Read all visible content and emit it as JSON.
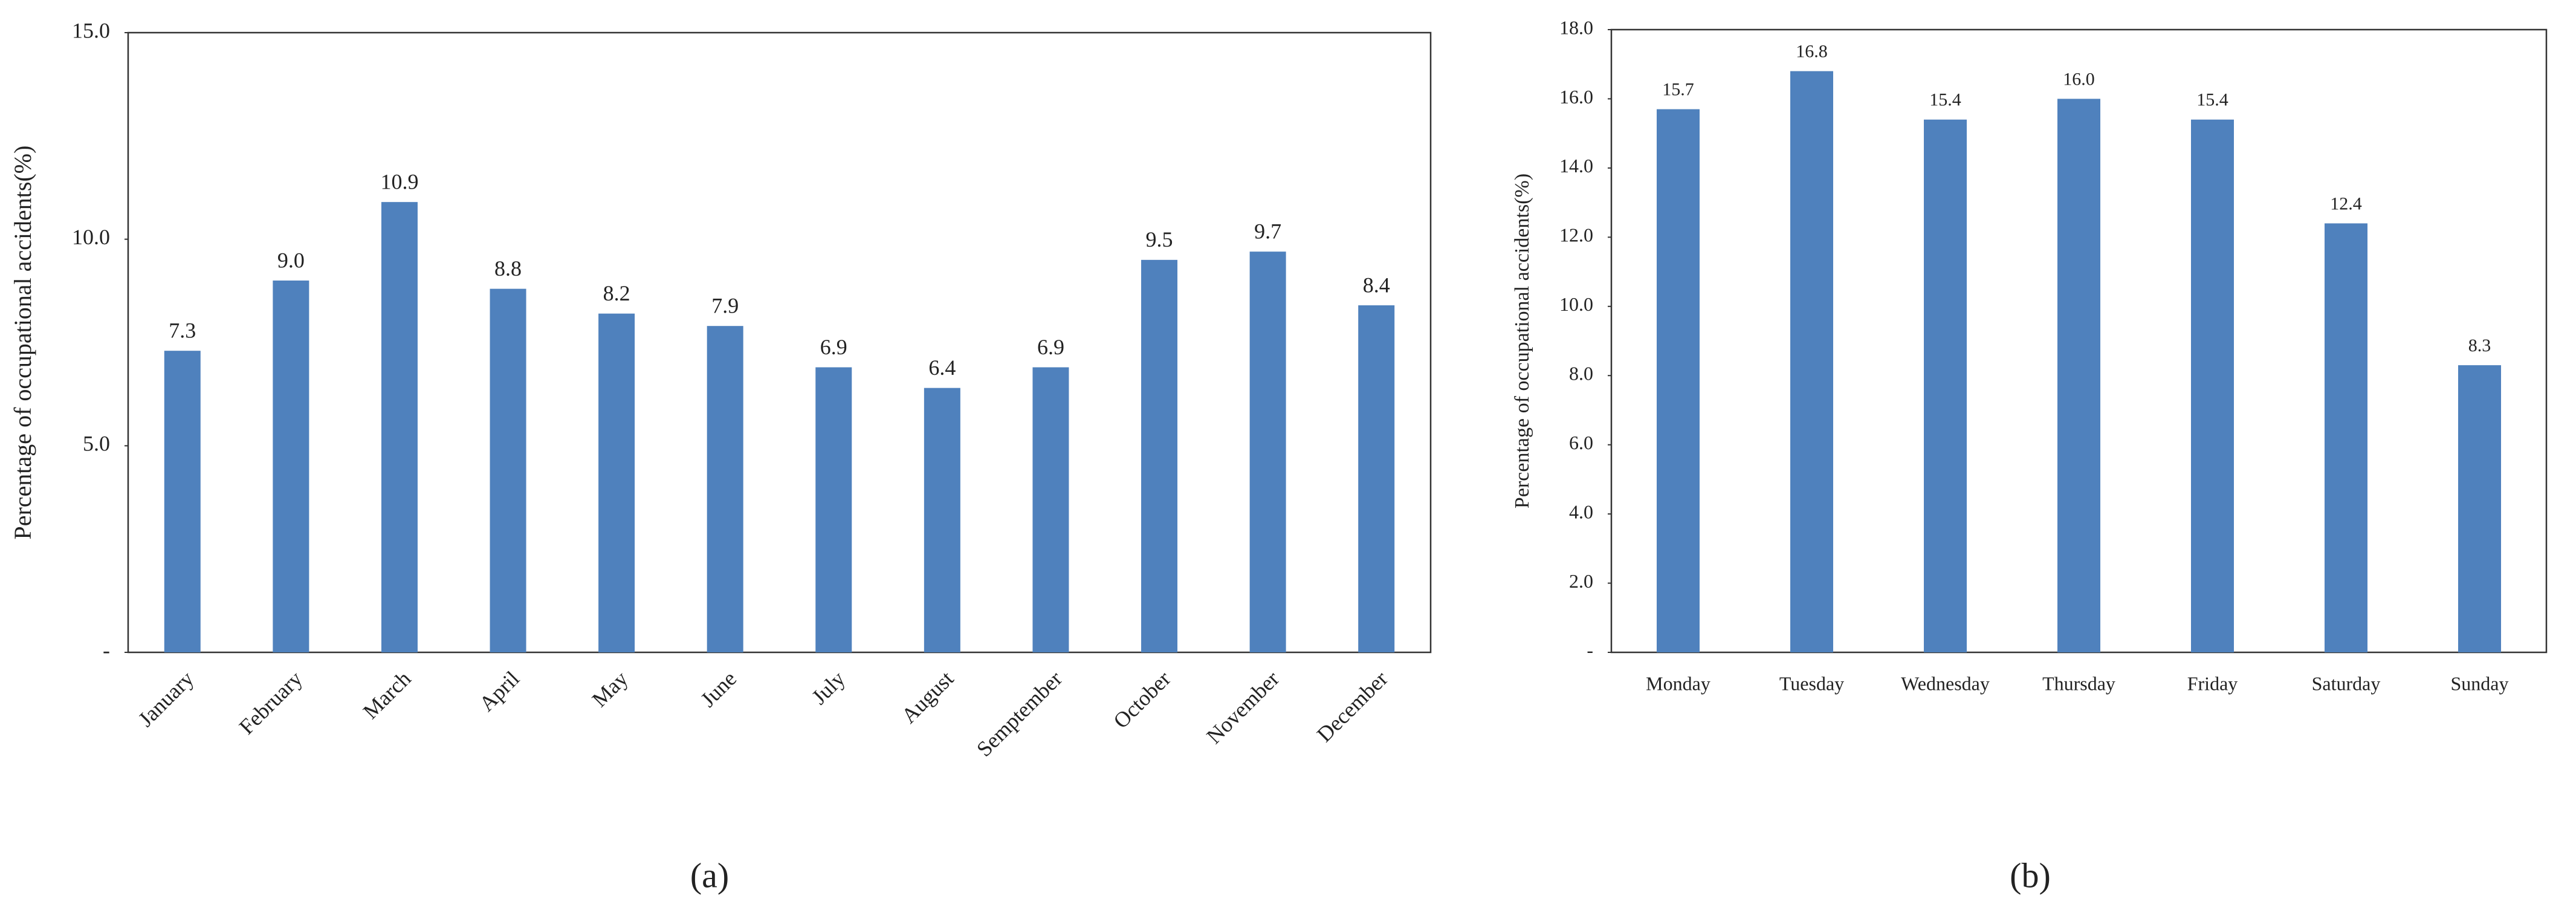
{
  "chart_data": [
    {
      "type": "bar",
      "caption": "(a)",
      "y_label": "Percentage of occupational accidents(%)",
      "categories": [
        "January",
        "February",
        "March",
        "April",
        "May",
        "June",
        "July",
        "August",
        "Semptember",
        "October",
        "November",
        "December"
      ],
      "values": [
        7.3,
        9.0,
        10.9,
        8.8,
        8.2,
        7.9,
        6.9,
        6.4,
        6.9,
        9.5,
        9.7,
        8.4
      ],
      "value_labels": [
        "7.3",
        "9.0",
        "10.9",
        "8.8",
        "8.2",
        "7.9",
        "6.9",
        "6.4",
        "6.9",
        "9.5",
        "9.7",
        "8.4"
      ],
      "color": "#4f81bd",
      "ylim": [
        0,
        15
      ],
      "yticks": [
        {
          "value": 0,
          "label": "-"
        },
        {
          "value": 5,
          "label": "5.0"
        },
        {
          "value": 10,
          "label": "10.0"
        },
        {
          "value": 15,
          "label": "15.0"
        }
      ],
      "grid": false
    },
    {
      "type": "bar",
      "caption": "(b)",
      "y_label": "Percentage of occupational accidents(%)",
      "categories": [
        "Monday",
        "Tuesday",
        "Wednesday",
        "Thursday",
        "Friday",
        "Saturday",
        "Sunday"
      ],
      "values": [
        15.7,
        16.8,
        15.4,
        16.0,
        15.4,
        12.4,
        8.3
      ],
      "value_labels": [
        "15.7",
        "16.8",
        "15.4",
        "16.0",
        "15.4",
        "12.4",
        "8.3"
      ],
      "color": "#4f81bd",
      "ylim": [
        0,
        18
      ],
      "yticks": [
        {
          "value": 0,
          "label": "-"
        },
        {
          "value": 2,
          "label": "2.0"
        },
        {
          "value": 4,
          "label": "4.0"
        },
        {
          "value": 6,
          "label": "6.0"
        },
        {
          "value": 8,
          "label": "8.0"
        },
        {
          "value": 10,
          "label": "10.0"
        },
        {
          "value": 12,
          "label": "12.0"
        },
        {
          "value": 14,
          "label": "14.0"
        },
        {
          "value": 16,
          "label": "16.0"
        },
        {
          "value": 18,
          "label": "18.0"
        }
      ],
      "grid": false
    }
  ]
}
